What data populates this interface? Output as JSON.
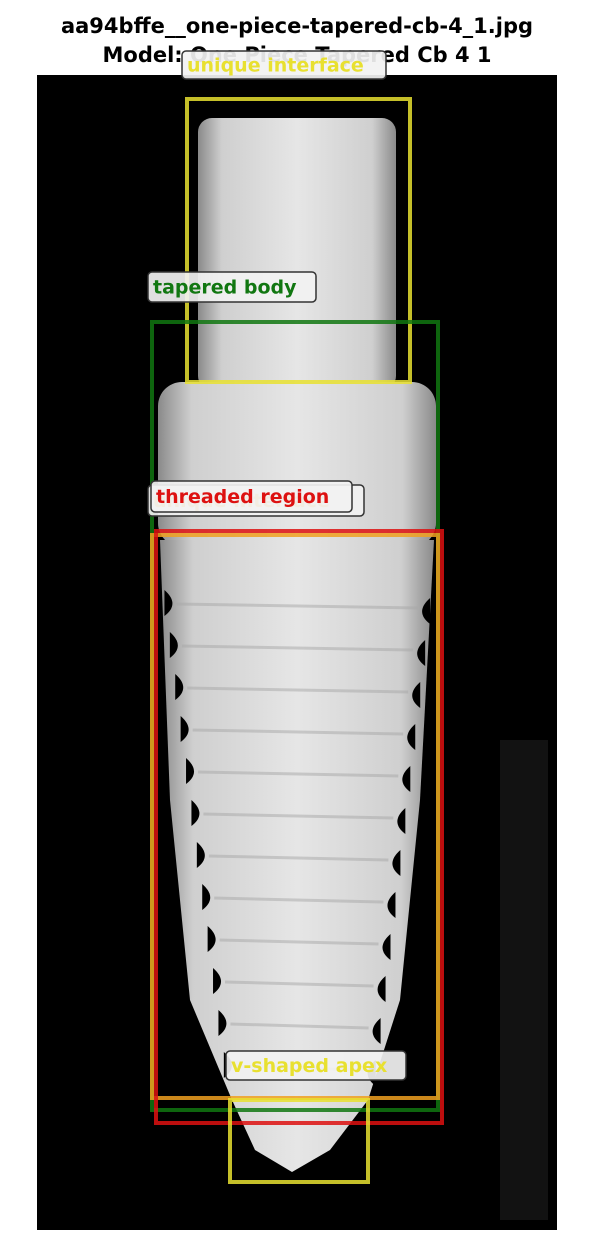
{
  "header": {
    "title": "aa94bffe__one-piece-tapered-cb-4_1.jpg",
    "subtitle": "Model: One Piece Tapered Cb 4 1"
  },
  "annotations": [
    {
      "label": "unique interface",
      "color": "#e8e030"
    },
    {
      "label": "tapered body",
      "color": "#117711"
    },
    {
      "label": "unique interface",
      "color": "#f0a020"
    },
    {
      "label": "threaded region",
      "color": "#dd1111"
    },
    {
      "label": "v-shaped apex",
      "color": "#e8e030"
    }
  ]
}
